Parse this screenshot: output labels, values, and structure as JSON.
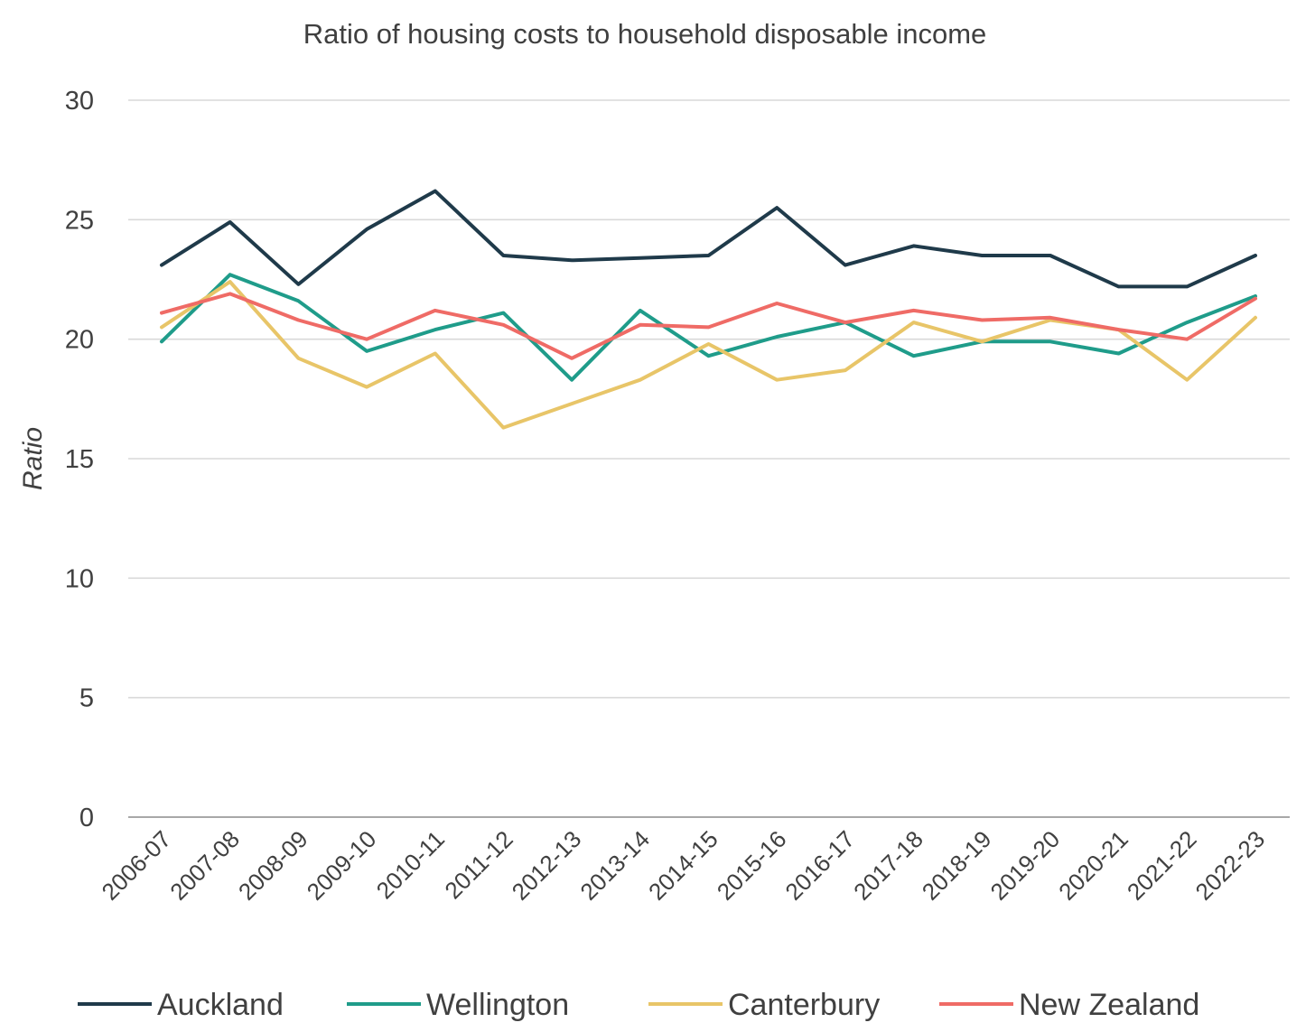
{
  "chart_data": {
    "type": "line",
    "title": "Ratio of housing costs to household disposable income",
    "xlabel": "",
    "ylabel": "Ratio",
    "ylim": [
      0,
      30
    ],
    "yticks": [
      0,
      5,
      10,
      15,
      20,
      25,
      30
    ],
    "grid": "horizontal",
    "legend_position": "bottom",
    "categories": [
      "2006-07",
      "2007-08",
      "2008-09",
      "2009-10",
      "2010-11",
      "2011-12",
      "2012-13",
      "2013-14",
      "2014-15",
      "2015-16",
      "2016-17",
      "2017-18",
      "2018-19",
      "2019-20",
      "2020-21",
      "2021-22",
      "2022-23"
    ],
    "series": [
      {
        "name": "Auckland",
        "color": "#1f3a4a",
        "values": [
          23.1,
          24.9,
          22.3,
          24.6,
          26.2,
          23.5,
          23.3,
          23.4,
          23.5,
          25.5,
          23.1,
          23.9,
          23.5,
          23.5,
          22.2,
          22.2,
          23.5
        ]
      },
      {
        "name": "Wellington",
        "color": "#1f9c8a",
        "values": [
          19.9,
          22.7,
          21.6,
          19.5,
          20.4,
          21.1,
          18.3,
          21.2,
          19.3,
          20.1,
          20.7,
          19.3,
          19.9,
          19.9,
          19.4,
          20.7,
          21.8
        ]
      },
      {
        "name": "Canterbury",
        "color": "#e8c568",
        "values": [
          20.5,
          22.4,
          19.2,
          18.0,
          19.4,
          16.3,
          17.3,
          18.3,
          19.8,
          18.3,
          18.7,
          20.7,
          19.9,
          20.8,
          20.4,
          18.3,
          20.9
        ]
      },
      {
        "name": "New Zealand",
        "color": "#ef6b66",
        "values": [
          21.1,
          21.9,
          20.8,
          20.0,
          21.2,
          20.6,
          19.2,
          20.6,
          20.5,
          21.5,
          20.7,
          21.2,
          20.8,
          20.9,
          20.4,
          20.0,
          21.7
        ]
      }
    ]
  }
}
